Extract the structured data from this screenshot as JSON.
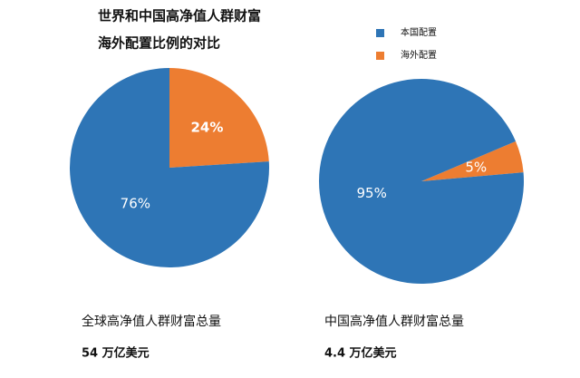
{
  "title": [
    "世界和中国高净值人群财富",
    "海外配置比例的对比"
  ],
  "chart_data": [
    {
      "type": "pie",
      "categories": [
        "本国配置",
        "海外配置"
      ],
      "values": [
        76,
        24
      ],
      "value_labels": [
        "76%",
        "24%"
      ],
      "colors": [
        "#2e75b6",
        "#ed7d31"
      ],
      "caption": "全球高净值人群财富总量",
      "total": "54 万亿美元"
    },
    {
      "type": "pie",
      "categories": [
        "本国配置",
        "海外配置"
      ],
      "values": [
        95,
        5
      ],
      "value_labels": [
        "95%",
        "5%"
      ],
      "colors": [
        "#2e75b6",
        "#ed7d31"
      ],
      "caption": "中国高净值人群财富总量",
      "total": "4.4 万亿美元"
    }
  ]
}
